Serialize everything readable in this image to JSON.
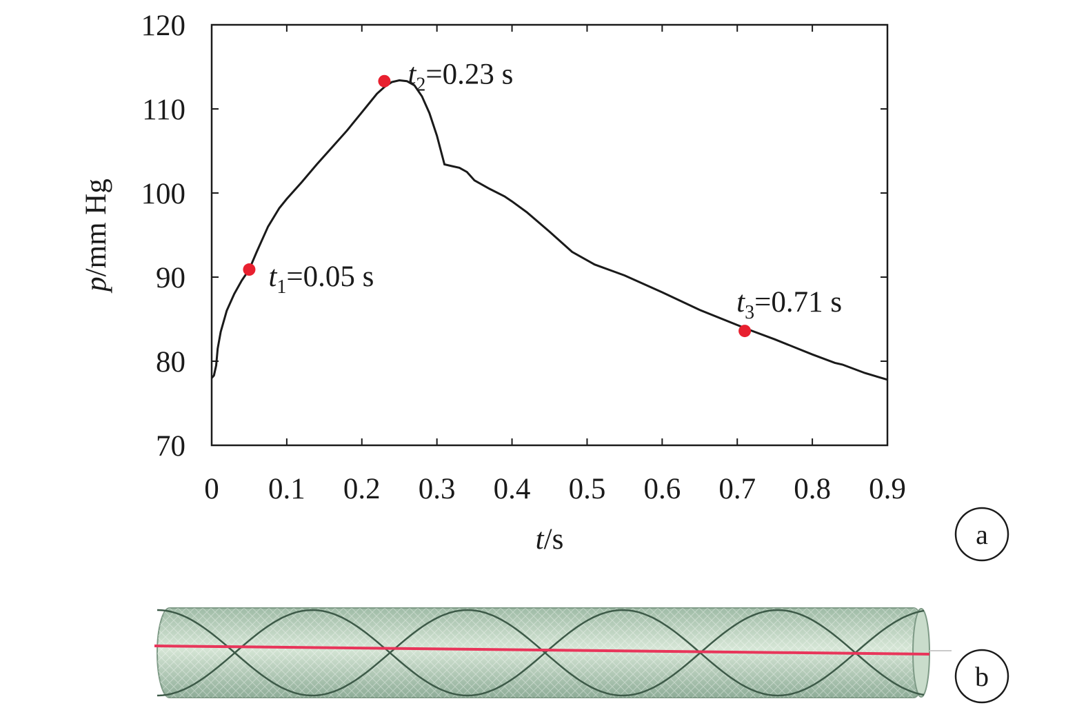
{
  "chart_data": {
    "type": "line",
    "xlabel": {
      "var": "t",
      "unit": "/s"
    },
    "ylabel": {
      "var": "p",
      "unit": "/mm Hg"
    },
    "xlim": [
      0,
      0.9
    ],
    "ylim": [
      70,
      120
    ],
    "xticks": [
      "0",
      "0.1",
      "0.2",
      "0.3",
      "0.4",
      "0.5",
      "0.6",
      "0.7",
      "0.8",
      "0.9"
    ],
    "yticks": [
      "70",
      "80",
      "90",
      "100",
      "110",
      "120"
    ],
    "grid": false,
    "series": [
      {
        "x": [
          0,
          0.003,
          0.006,
          0.008,
          0.012,
          0.02,
          0.03,
          0.04,
          0.05,
          0.06,
          0.075,
          0.09,
          0.1,
          0.12,
          0.14,
          0.16,
          0.18,
          0.2,
          0.21,
          0.22,
          0.23,
          0.24,
          0.25,
          0.26,
          0.27,
          0.28,
          0.29,
          0.3,
          0.31,
          0.32,
          0.33,
          0.34,
          0.35,
          0.37,
          0.39,
          0.4,
          0.42,
          0.45,
          0.48,
          0.51,
          0.55,
          0.6,
          0.65,
          0.7,
          0.72,
          0.75,
          0.8,
          0.83,
          0.84,
          0.87,
          0.9
        ],
        "y": [
          78.0,
          78.3,
          79.5,
          81.5,
          83.5,
          86.0,
          88.0,
          89.6,
          90.9,
          93.0,
          96.0,
          98.2,
          99.3,
          101.3,
          103.4,
          105.4,
          107.4,
          109.6,
          110.7,
          111.8,
          112.6,
          113.2,
          113.4,
          113.3,
          112.8,
          111.5,
          109.5,
          106.8,
          103.4,
          103.2,
          103.0,
          102.5,
          101.5,
          100.5,
          99.6,
          99.0,
          97.7,
          95.4,
          93.0,
          91.5,
          90.2,
          88.2,
          86.1,
          84.3,
          83.6,
          82.6,
          80.8,
          79.8,
          79.6,
          78.6,
          77.8
        ]
      }
    ],
    "markers": [
      {
        "x": 0.05,
        "y": 90.9,
        "var": "t",
        "sub": "1",
        "text": "=0.05 s"
      },
      {
        "x": 0.23,
        "y": 113.3,
        "var": "t",
        "sub": "2",
        "text": "=0.23 s"
      },
      {
        "x": 0.71,
        "y": 83.6,
        "var": "t",
        "sub": "3",
        "text": "=0.71 s"
      }
    ],
    "marker_color": "#e8202f",
    "line_color": "#1a1a1a",
    "panel_labels": [
      "a",
      "b"
    ]
  },
  "vessel": {
    "fill_color": "#b8d2bc",
    "helix_color": "#3d5a48",
    "centerline_color": "#e8355a"
  }
}
